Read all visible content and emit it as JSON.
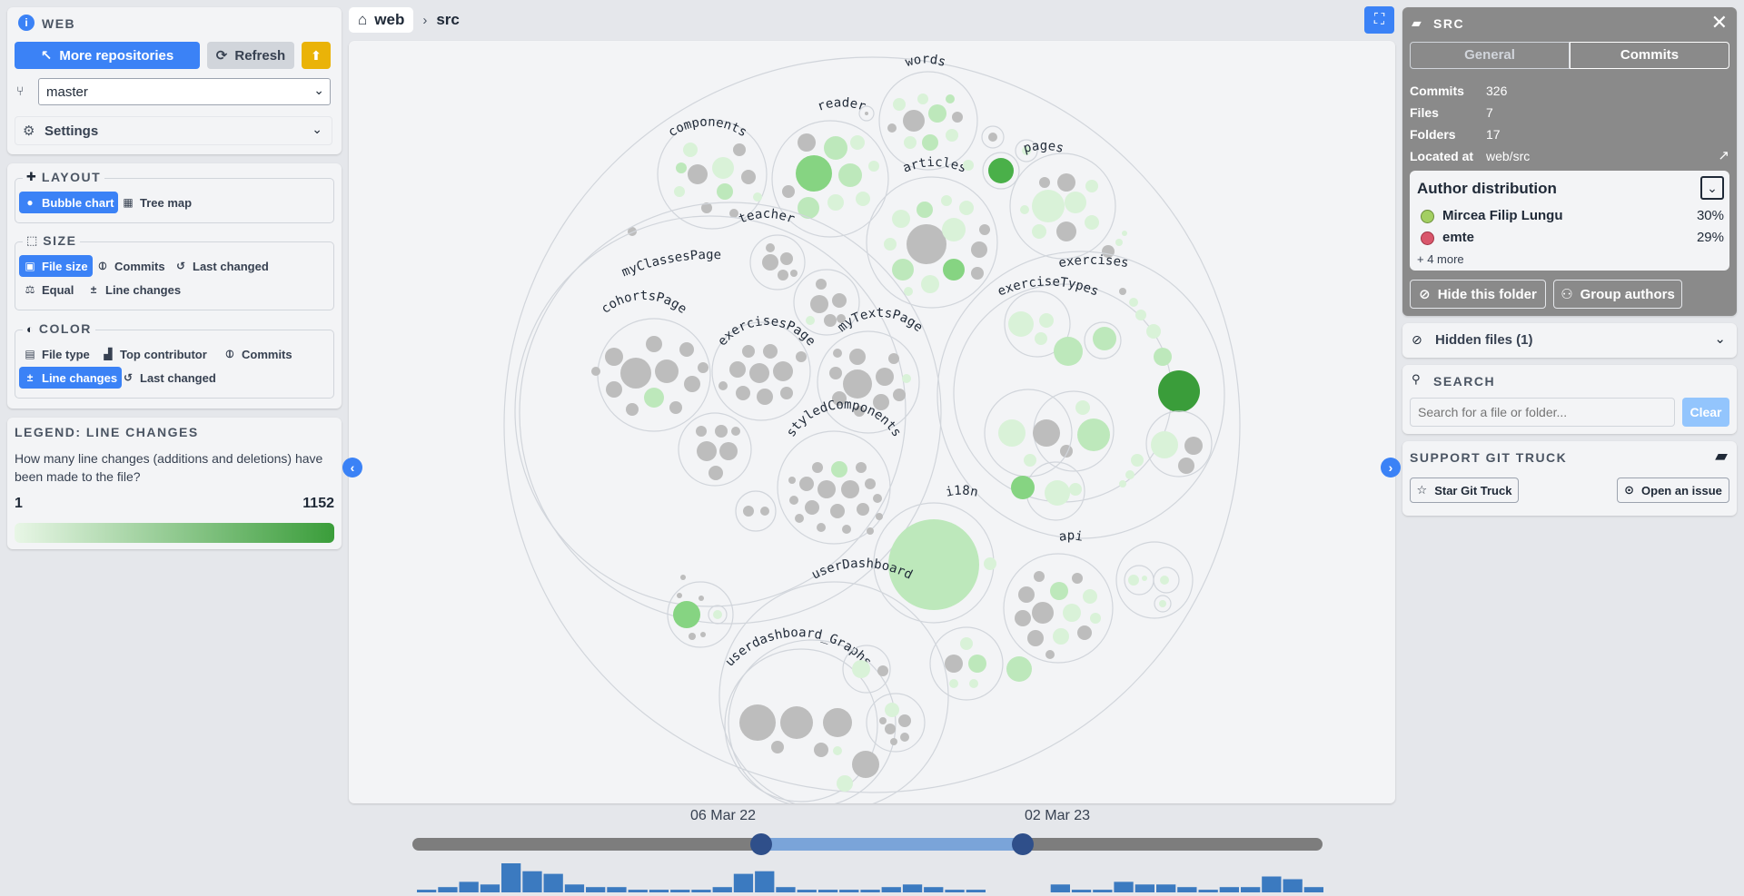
{
  "repo": {
    "name": "WEB",
    "more_repos_label": "More repositories",
    "refresh_label": "Refresh",
    "branch": "master",
    "settings_label": "Settings"
  },
  "layout": {
    "heading": "LAYOUT",
    "options": [
      "Bubble chart",
      "Tree map"
    ],
    "selected": "Bubble chart"
  },
  "size": {
    "heading": "SIZE",
    "options": [
      "File size",
      "Commits",
      "Last changed",
      "Equal",
      "Line changes"
    ],
    "selected": "File size"
  },
  "color": {
    "heading": "COLOR",
    "options": [
      "File type",
      "Top contributor",
      "Commits",
      "Line changes",
      "Last changed"
    ],
    "selected": "Line changes"
  },
  "legend": {
    "title": "LEGEND: LINE CHANGES",
    "description": "How many line changes (additions and deletions) have been made to the file?",
    "min": "1",
    "max": "1152",
    "gradient_start": "#e8f6e6",
    "gradient_end": "#3a9d3a"
  },
  "breadcrumb": {
    "root": "web",
    "current": "src"
  },
  "chart_labels": {
    "src": "src",
    "words": "words",
    "components": "components",
    "reader": "reader",
    "articles": "articles",
    "pages": "pages",
    "teacher": "teacher",
    "myClassesPage": "myClassesPage",
    "exercises": "exercises",
    "exerciseTypes": "exerciseTypes",
    "cohortsPage": "cohortsPage",
    "exercisesPage": "exercisesPage",
    "myTextsPage": "myTextsPage",
    "styledComponents": "styledComponents",
    "i18n": "i18n",
    "api": "api",
    "userDashboard": "userDashboard",
    "userdashboard_Graphs": "userdashboard_Graphs"
  },
  "details": {
    "title": "SRC",
    "tabs": [
      "General",
      "Commits"
    ],
    "active_tab": "Commits",
    "commits_label": "Commits",
    "commits": "326",
    "files_label": "Files",
    "files": "7",
    "folders_label": "Folders",
    "folders": "17",
    "located_label": "Located at",
    "located": "web/src",
    "author_title": "Author distribution",
    "authors": [
      {
        "name": "Mircea Filip Lungu",
        "percent": "30%",
        "color": "#a3cf62"
      },
      {
        "name": "emte",
        "percent": "29%",
        "color": "#d9566b"
      }
    ],
    "more_authors": "+ 4 more",
    "hide_folder_label": "Hide this folder",
    "group_authors_label": "Group authors"
  },
  "hidden_files": {
    "label": "Hidden files (1)"
  },
  "search": {
    "heading": "SEARCH",
    "placeholder": "Search for a file or folder...",
    "clear_label": "Clear"
  },
  "support": {
    "heading": "SUPPORT GIT TRUCK",
    "star_label": "Star Git Truck",
    "issue_label": "Open an issue"
  },
  "timeline": {
    "start_date": "06 Mar 22",
    "end_date": "02 Mar 23",
    "histogram": [
      1,
      2,
      4,
      3,
      11,
      8,
      7,
      3,
      2,
      2,
      1,
      1,
      1,
      1,
      2,
      7,
      8,
      2,
      1,
      1,
      1,
      1,
      2,
      3,
      2,
      1,
      1,
      0,
      0,
      0,
      3,
      1,
      1,
      4,
      3,
      3,
      2,
      1,
      2,
      2,
      6,
      5,
      2
    ]
  },
  "colors": {
    "accent": "#3b82f6",
    "details_header": "#8a8a8a",
    "upload_button": "#eab308"
  }
}
